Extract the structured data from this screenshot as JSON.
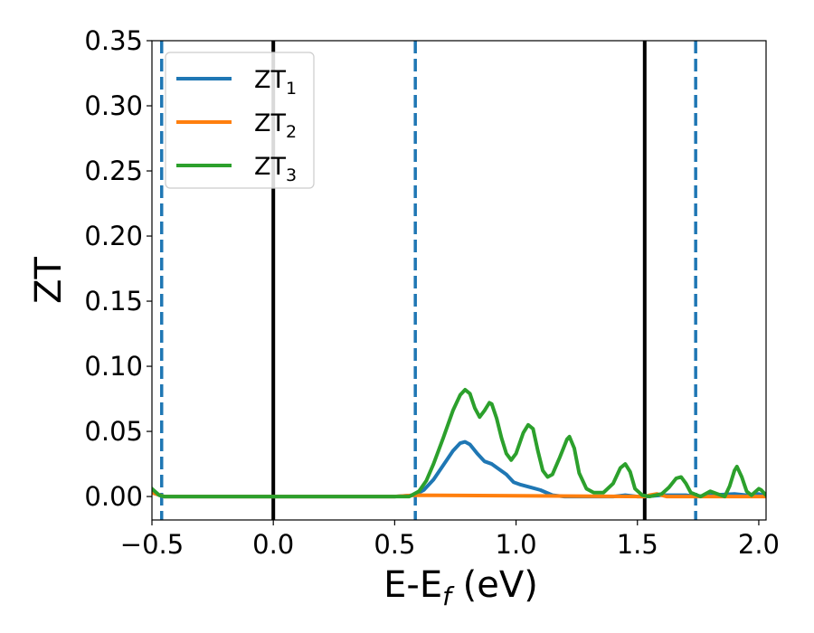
{
  "chart_data": {
    "type": "line",
    "title": "",
    "xlabel": {
      "main": "E-E",
      "sub": "f",
      "unit": " (eV)"
    },
    "ylabel": "ZT",
    "xlim": [
      -0.5,
      2.03
    ],
    "ylim": [
      -0.018,
      0.35
    ],
    "xticks": [
      -0.5,
      0.0,
      0.5,
      1.0,
      1.5,
      2.0
    ],
    "xtick_labels": [
      "−0.5",
      "0.0",
      "0.5",
      "1.0",
      "1.5",
      "2.0"
    ],
    "yticks": [
      0.0,
      0.05,
      0.1,
      0.15,
      0.2,
      0.25,
      0.3,
      0.35
    ],
    "ytick_labels": [
      "0.00",
      "0.05",
      "0.10",
      "0.15",
      "0.20",
      "0.25",
      "0.30",
      "0.35"
    ],
    "grid": false,
    "legend_position": "top-left",
    "vlines_solid": [
      0.0,
      1.53
    ],
    "vlines_dashed": [
      -0.46,
      0.585,
      1.74
    ],
    "vline_colors": {
      "solid": "#000000",
      "dashed": "#1f77b4"
    },
    "series": [
      {
        "name": "ZT",
        "sub": "1",
        "color": "#1f77b4",
        "points": [
          [
            -0.5,
            0.003
          ],
          [
            -0.45,
            0.0
          ],
          [
            0.0,
            0.0
          ],
          [
            0.5,
            0.0
          ],
          [
            0.58,
            0.001
          ],
          [
            0.62,
            0.005
          ],
          [
            0.66,
            0.013
          ],
          [
            0.7,
            0.024
          ],
          [
            0.74,
            0.035
          ],
          [
            0.77,
            0.041
          ],
          [
            0.79,
            0.042
          ],
          [
            0.81,
            0.04
          ],
          [
            0.84,
            0.033
          ],
          [
            0.87,
            0.027
          ],
          [
            0.9,
            0.025
          ],
          [
            0.93,
            0.021
          ],
          [
            0.96,
            0.017
          ],
          [
            0.99,
            0.011
          ],
          [
            1.02,
            0.009
          ],
          [
            1.06,
            0.007
          ],
          [
            1.1,
            0.005
          ],
          [
            1.15,
            0.001
          ],
          [
            1.2,
            0.0
          ],
          [
            1.3,
            0.0
          ],
          [
            1.4,
            0.0
          ],
          [
            1.45,
            0.001
          ],
          [
            1.5,
            0.0
          ],
          [
            1.53,
            0.0
          ],
          [
            1.6,
            0.001
          ],
          [
            1.7,
            0.001
          ],
          [
            1.74,
            0.0
          ],
          [
            1.8,
            0.001
          ],
          [
            1.9,
            0.002
          ],
          [
            1.95,
            0.001
          ],
          [
            2.0,
            0.002
          ],
          [
            2.03,
            0.0
          ]
        ]
      },
      {
        "name": "ZT",
        "sub": "2",
        "color": "#ff7f0e",
        "points": [
          [
            -0.5,
            0.003
          ],
          [
            -0.45,
            0.0
          ],
          [
            0.0,
            0.0
          ],
          [
            0.5,
            0.0
          ],
          [
            0.58,
            0.001
          ],
          [
            1.53,
            0.0
          ],
          [
            1.55,
            0.001
          ],
          [
            1.58,
            0.002
          ],
          [
            1.6,
            0.001
          ],
          [
            1.62,
            0.0
          ],
          [
            2.03,
            0.0
          ]
        ]
      },
      {
        "name": "ZT",
        "sub": "3",
        "color": "#2ca02c",
        "points": [
          [
            -0.5,
            0.006
          ],
          [
            -0.47,
            0.001
          ],
          [
            -0.45,
            0.0
          ],
          [
            0.0,
            0.0
          ],
          [
            0.5,
            0.0
          ],
          [
            0.56,
            0.0
          ],
          [
            0.6,
            0.004
          ],
          [
            0.63,
            0.012
          ],
          [
            0.66,
            0.025
          ],
          [
            0.7,
            0.045
          ],
          [
            0.74,
            0.066
          ],
          [
            0.77,
            0.078
          ],
          [
            0.79,
            0.082
          ],
          [
            0.81,
            0.079
          ],
          [
            0.83,
            0.068
          ],
          [
            0.85,
            0.061
          ],
          [
            0.87,
            0.066
          ],
          [
            0.89,
            0.072
          ],
          [
            0.9,
            0.071
          ],
          [
            0.92,
            0.06
          ],
          [
            0.94,
            0.045
          ],
          [
            0.96,
            0.033
          ],
          [
            0.98,
            0.028
          ],
          [
            1.0,
            0.033
          ],
          [
            1.03,
            0.049
          ],
          [
            1.05,
            0.055
          ],
          [
            1.07,
            0.052
          ],
          [
            1.09,
            0.035
          ],
          [
            1.11,
            0.02
          ],
          [
            1.13,
            0.015
          ],
          [
            1.15,
            0.017
          ],
          [
            1.18,
            0.03
          ],
          [
            1.21,
            0.044
          ],
          [
            1.22,
            0.046
          ],
          [
            1.24,
            0.037
          ],
          [
            1.26,
            0.018
          ],
          [
            1.29,
            0.006
          ],
          [
            1.32,
            0.003
          ],
          [
            1.36,
            0.003
          ],
          [
            1.4,
            0.01
          ],
          [
            1.43,
            0.022
          ],
          [
            1.45,
            0.025
          ],
          [
            1.47,
            0.019
          ],
          [
            1.49,
            0.006
          ],
          [
            1.52,
            0.001
          ],
          [
            1.55,
            0.0
          ],
          [
            1.6,
            0.002
          ],
          [
            1.63,
            0.007
          ],
          [
            1.66,
            0.014
          ],
          [
            1.68,
            0.015
          ],
          [
            1.7,
            0.01
          ],
          [
            1.72,
            0.003
          ],
          [
            1.76,
            0.0
          ],
          [
            1.8,
            0.004
          ],
          [
            1.83,
            0.002
          ],
          [
            1.86,
            0.0
          ],
          [
            1.88,
            0.008
          ],
          [
            1.9,
            0.02
          ],
          [
            1.91,
            0.023
          ],
          [
            1.93,
            0.015
          ],
          [
            1.95,
            0.004
          ],
          [
            1.97,
            0.001
          ],
          [
            2.0,
            0.006
          ],
          [
            2.01,
            0.005
          ],
          [
            2.03,
            0.001
          ]
        ]
      }
    ]
  }
}
